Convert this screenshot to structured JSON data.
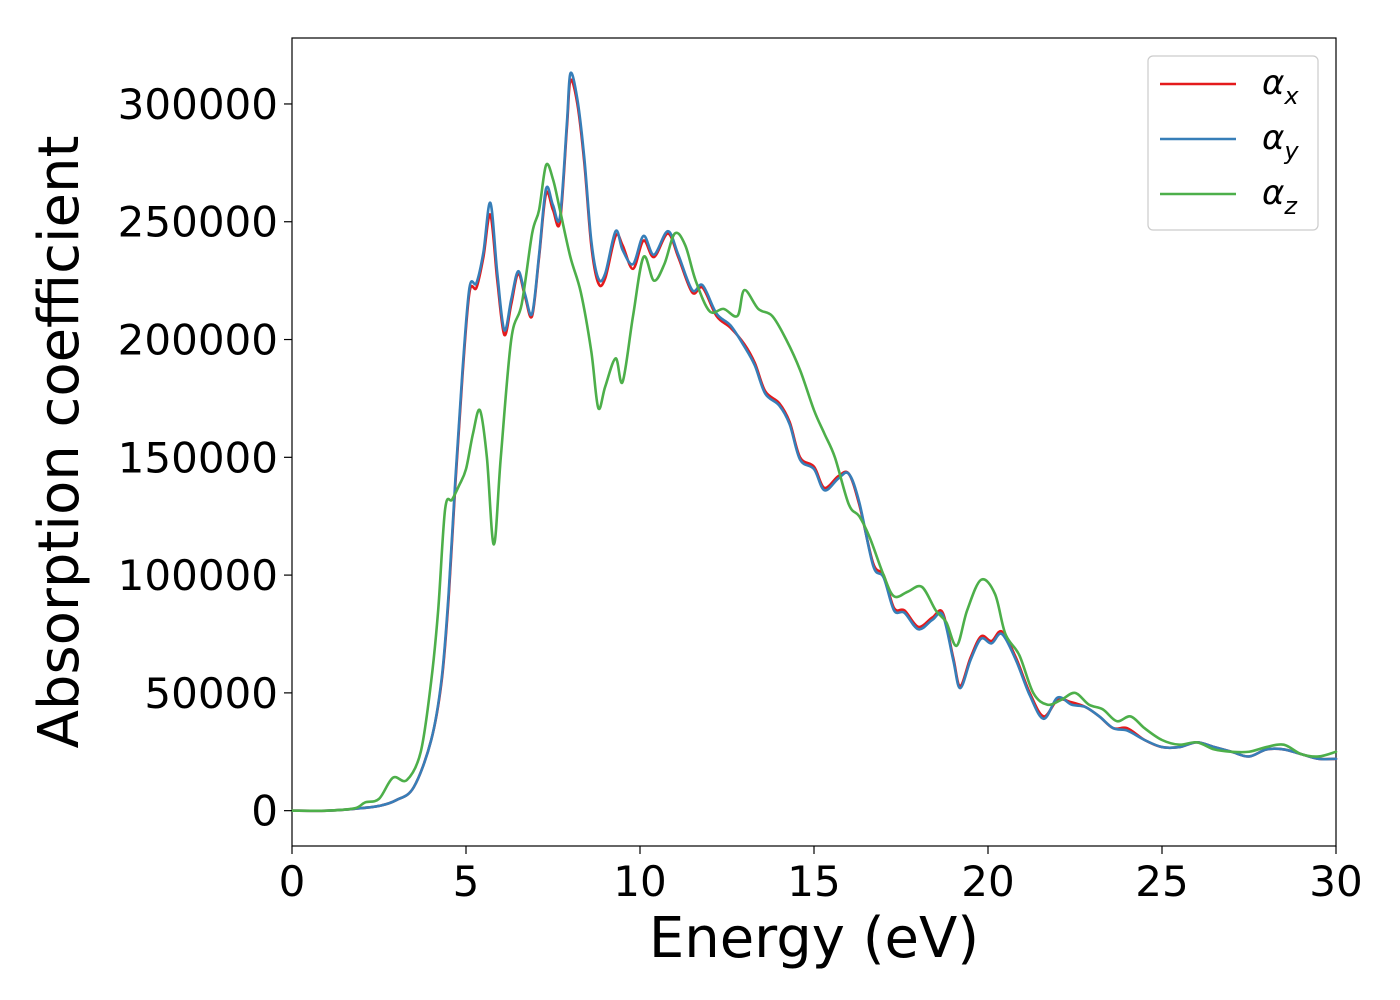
{
  "chart_data": {
    "type": "line",
    "title": "",
    "xlabel": "Energy (eV)",
    "ylabel": "Absorption coefficient",
    "xlim": [
      0,
      30
    ],
    "ylim": [
      -15000,
      328000
    ],
    "xticks": [
      0,
      5,
      10,
      15,
      20,
      25,
      30
    ],
    "yticks": [
      0,
      50000,
      100000,
      150000,
      200000,
      250000,
      300000
    ],
    "grid": false,
    "legend_position": "top-right",
    "series": [
      {
        "name": "αx",
        "legend_base": "α",
        "legend_sub": "x",
        "color": "#e41a1c",
        "x": [
          0,
          1,
          1.8,
          2.5,
          3.0,
          3.5,
          4.0,
          4.3,
          4.5,
          4.7,
          4.9,
          5.1,
          5.3,
          5.5,
          5.7,
          5.9,
          6.1,
          6.3,
          6.5,
          6.7,
          6.9,
          7.1,
          7.3,
          7.5,
          7.7,
          7.9,
          8.0,
          8.2,
          8.4,
          8.6,
          8.8,
          9.0,
          9.3,
          9.5,
          9.8,
          10.1,
          10.4,
          10.8,
          11.1,
          11.5,
          11.8,
          12.2,
          12.6,
          13.0,
          13.3,
          13.6,
          14.0,
          14.3,
          14.6,
          15.0,
          15.3,
          15.7,
          16.0,
          16.3,
          16.7,
          17.0,
          17.3,
          17.6,
          18.0,
          18.4,
          18.7,
          19.0,
          19.2,
          19.5,
          19.8,
          20.1,
          20.4,
          20.8,
          21.2,
          21.6,
          22.0,
          22.4,
          22.8,
          23.2,
          23.6,
          24.0,
          24.5,
          25.0,
          25.5,
          26.0,
          26.5,
          27.0,
          27.5,
          28.0,
          28.5,
          29.0,
          29.5,
          30.0
        ],
        "y": [
          0,
          0,
          800,
          2000,
          4500,
          10000,
          30000,
          55000,
          90000,
          140000,
          185000,
          220000,
          222000,
          235000,
          253000,
          225000,
          202000,
          215000,
          228000,
          218000,
          210000,
          235000,
          262000,
          255000,
          250000,
          290000,
          310000,
          300000,
          275000,
          240000,
          224000,
          226000,
          244000,
          240000,
          230000,
          242000,
          235000,
          245000,
          235000,
          220000,
          222000,
          210000,
          205000,
          198000,
          190000,
          178000,
          173000,
          165000,
          150000,
          146000,
          137000,
          142000,
          143000,
          130000,
          105000,
          100000,
          86000,
          85000,
          78000,
          82000,
          84000,
          65000,
          53000,
          65000,
          74000,
          72000,
          76000,
          65000,
          50000,
          40000,
          47000,
          46000,
          44000,
          40000,
          35000,
          35000,
          30000,
          27000,
          27000,
          29000,
          27000,
          25000,
          23000,
          26000,
          26000,
          24000,
          22000,
          22000
        ]
      },
      {
        "name": "αy",
        "legend_base": "α",
        "legend_sub": "y",
        "color": "#377eb8",
        "x": [
          0,
          1,
          1.8,
          2.5,
          3.0,
          3.5,
          4.0,
          4.3,
          4.5,
          4.7,
          4.9,
          5.1,
          5.3,
          5.5,
          5.7,
          5.9,
          6.1,
          6.3,
          6.5,
          6.7,
          6.9,
          7.1,
          7.3,
          7.5,
          7.7,
          7.9,
          8.0,
          8.2,
          8.4,
          8.6,
          8.8,
          9.0,
          9.3,
          9.5,
          9.8,
          10.1,
          10.4,
          10.8,
          11.1,
          11.5,
          11.8,
          12.2,
          12.6,
          13.0,
          13.3,
          13.6,
          14.0,
          14.3,
          14.6,
          15.0,
          15.3,
          15.7,
          16.0,
          16.3,
          16.7,
          17.0,
          17.3,
          17.6,
          18.0,
          18.4,
          18.7,
          19.0,
          19.2,
          19.5,
          19.8,
          20.1,
          20.4,
          20.8,
          21.2,
          21.6,
          22.0,
          22.4,
          22.8,
          23.2,
          23.6,
          24.0,
          24.5,
          25.0,
          25.5,
          26.0,
          26.5,
          27.0,
          27.5,
          28.0,
          28.5,
          29.0,
          29.5,
          30.0
        ],
        "y": [
          0,
          0,
          800,
          2000,
          4500,
          10000,
          30000,
          56000,
          92000,
          142000,
          187000,
          222000,
          224000,
          237000,
          258000,
          228000,
          204000,
          217000,
          229000,
          219000,
          211000,
          236000,
          264000,
          257000,
          252000,
          292000,
          313000,
          302000,
          277000,
          242000,
          226000,
          228000,
          246000,
          238000,
          232000,
          244000,
          236000,
          246000,
          236000,
          221000,
          223000,
          211000,
          206000,
          197000,
          189000,
          177000,
          172000,
          164000,
          149000,
          145000,
          136000,
          141000,
          143000,
          131000,
          104000,
          99000,
          85000,
          84000,
          77000,
          81000,
          83000,
          64000,
          52000,
          64000,
          73000,
          71000,
          75000,
          64000,
          49000,
          39000,
          48000,
          45000,
          44000,
          40000,
          35000,
          34000,
          30000,
          27000,
          27000,
          29000,
          27000,
          25000,
          23000,
          26000,
          26000,
          24000,
          22000,
          22000
        ]
      },
      {
        "name": "αz",
        "legend_base": "α",
        "legend_sub": "z",
        "color": "#4daf4a",
        "x": [
          0,
          1,
          1.8,
          2.1,
          2.5,
          2.9,
          3.3,
          3.7,
          4.0,
          4.2,
          4.4,
          4.6,
          4.8,
          5.0,
          5.2,
          5.4,
          5.6,
          5.8,
          6.0,
          6.3,
          6.6,
          6.9,
          7.1,
          7.3,
          7.5,
          7.7,
          8.0,
          8.3,
          8.6,
          8.8,
          9.0,
          9.3,
          9.5,
          9.8,
          10.1,
          10.4,
          10.7,
          11.0,
          11.3,
          11.6,
          12.0,
          12.4,
          12.8,
          13.0,
          13.4,
          13.8,
          14.2,
          14.6,
          15.0,
          15.3,
          15.6,
          16.0,
          16.3,
          16.6,
          17.0,
          17.3,
          17.7,
          18.1,
          18.5,
          18.8,
          19.1,
          19.4,
          19.8,
          20.2,
          20.5,
          20.9,
          21.3,
          21.7,
          22.1,
          22.5,
          22.9,
          23.3,
          23.7,
          24.1,
          24.5,
          25.0,
          25.5,
          26.0,
          26.5,
          27.0,
          27.5,
          28.0,
          28.5,
          29.0,
          29.5,
          30.0
        ],
        "y": [
          0,
          0,
          1000,
          3500,
          5000,
          14000,
          13000,
          25000,
          55000,
          85000,
          128000,
          132000,
          138000,
          145000,
          160000,
          170000,
          150000,
          113000,
          150000,
          200000,
          215000,
          245000,
          255000,
          274000,
          268000,
          255000,
          235000,
          220000,
          195000,
          171000,
          180000,
          192000,
          182000,
          210000,
          235000,
          225000,
          232000,
          245000,
          240000,
          225000,
          212000,
          213000,
          210000,
          221000,
          213000,
          210000,
          200000,
          187000,
          170000,
          160000,
          150000,
          130000,
          125000,
          116000,
          100000,
          91000,
          93000,
          95000,
          85000,
          80000,
          70000,
          85000,
          98000,
          92000,
          75000,
          66000,
          50000,
          45000,
          47000,
          50000,
          45000,
          43000,
          38000,
          40000,
          35000,
          30000,
          28000,
          29000,
          26000,
          25000,
          25000,
          27000,
          28000,
          24000,
          23000,
          25000
        ]
      }
    ]
  }
}
